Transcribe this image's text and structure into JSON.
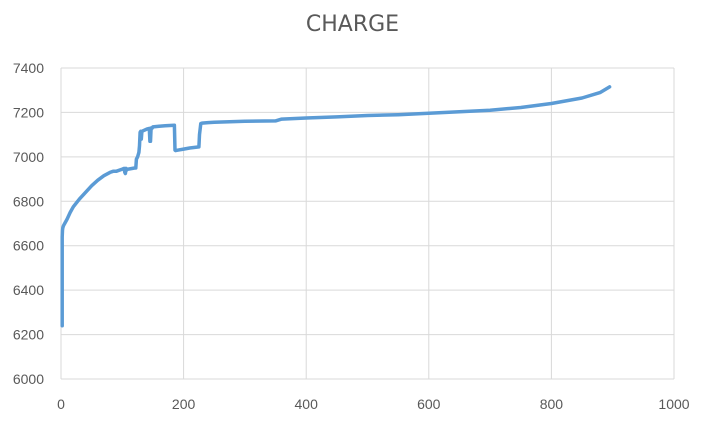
{
  "chart_data": {
    "type": "line",
    "title": "CHARGE",
    "xlabel": "",
    "ylabel": "",
    "xlim": [
      0,
      1000
    ],
    "ylim": [
      6000,
      7400
    ],
    "xticks": [
      0,
      200,
      400,
      600,
      800,
      1000
    ],
    "yticks": [
      6000,
      6200,
      6400,
      6600,
      6800,
      7000,
      7200,
      7400
    ],
    "grid": true,
    "legend": "none",
    "series": [
      {
        "color": "#5B9BD5",
        "x": [
          2,
          2,
          2.5,
          3,
          4,
          6,
          10,
          15,
          20,
          30,
          40,
          50,
          60,
          70,
          80,
          85,
          90,
          100,
          103,
          104,
          105,
          106,
          107,
          108,
          110,
          120,
          121,
          122,
          123,
          125,
          127,
          128,
          129,
          130,
          131,
          132,
          140,
          144,
          145,
          146,
          147,
          148,
          149,
          150,
          160,
          170,
          185,
          186,
          187,
          190,
          200,
          210,
          220,
          225,
          226,
          228,
          230,
          240,
          250,
          300,
          350,
          360,
          400,
          450,
          500,
          550,
          600,
          650,
          700,
          750,
          800,
          850,
          880,
          895
        ],
        "y": [
          6240,
          6640,
          6670,
          6680,
          6690,
          6700,
          6720,
          6750,
          6775,
          6810,
          6840,
          6870,
          6895,
          6915,
          6930,
          6935,
          6935,
          6945,
          6948,
          6930,
          6925,
          6948,
          6940,
          6945,
          6945,
          6950,
          6950,
          6950,
          6990,
          7000,
          7020,
          7050,
          7110,
          7115,
          7080,
          7115,
          7125,
          7128,
          7070,
          7070,
          7130,
          7128,
          7130,
          7135,
          7138,
          7140,
          7142,
          7030,
          7028,
          7030,
          7035,
          7040,
          7043,
          7045,
          7100,
          7150,
          7152,
          7154,
          7156,
          7160,
          7162,
          7170,
          7175,
          7180,
          7186,
          7190,
          7196,
          7203,
          7210,
          7222,
          7240,
          7265,
          7290,
          7315
        ]
      }
    ]
  }
}
